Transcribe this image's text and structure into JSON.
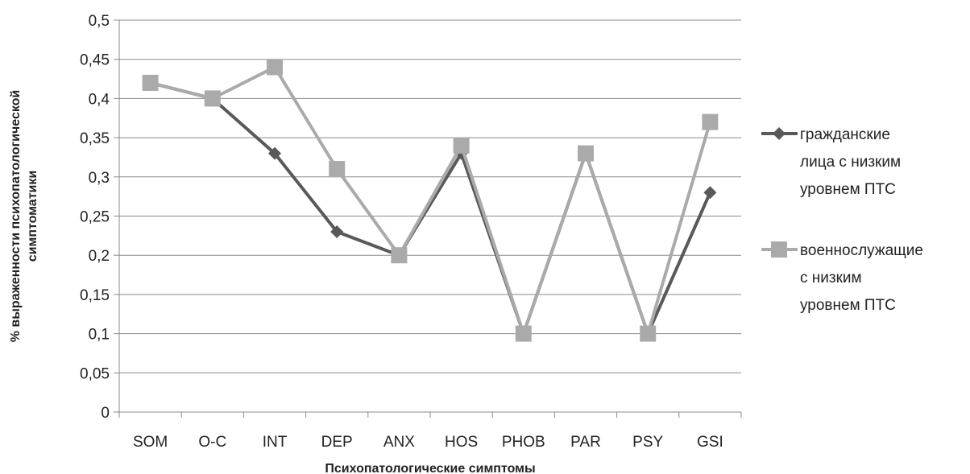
{
  "chart_data": {
    "type": "line",
    "title": "",
    "xlabel": "Психопатологические симптомы",
    "ylabel_lines": [
      "% выраженности психопатологической",
      "симптоматики"
    ],
    "categories": [
      "SOM",
      "O-C",
      "INT",
      "DEP",
      "ANX",
      "HOS",
      "PHOB",
      "PAR",
      "PSY",
      "GSI"
    ],
    "ylim": [
      0,
      0.5
    ],
    "ytick_values": [
      0,
      0.05,
      0.1,
      0.15,
      0.2,
      0.25,
      0.3,
      0.35,
      0.4,
      0.45,
      0.5
    ],
    "ytick_labels": [
      "0",
      "0,05",
      "0,1",
      "0,15",
      "0,2",
      "0,25",
      "0,3",
      "0,35",
      "0,4",
      "0,45",
      "0,5"
    ],
    "grid": true,
    "legend_position": "right",
    "series": [
      {
        "legend_lines": [
          "гражданские",
          "лица с низким",
          "уровнем ПТС"
        ],
        "values": [
          0.42,
          0.4,
          0.33,
          0.23,
          0.2,
          0.33,
          0.1,
          0.33,
          0.1,
          0.28
        ],
        "color": "#595959",
        "marker": "diamond"
      },
      {
        "legend_lines": [
          "военнослужащие",
          "с низким",
          "уровнем ПТС"
        ],
        "values": [
          0.42,
          0.4,
          0.44,
          0.31,
          0.2,
          0.34,
          0.1,
          0.33,
          0.1,
          0.37
        ],
        "color": "#aaaaaa",
        "marker": "square"
      }
    ]
  }
}
